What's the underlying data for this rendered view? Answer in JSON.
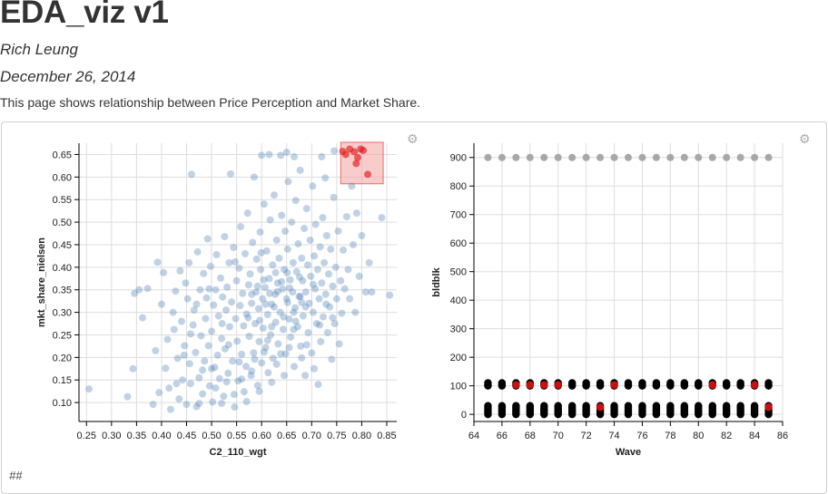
{
  "page": {
    "title": "EDA_viz v1",
    "author": "Rich Leung",
    "date": "December 26, 2014",
    "description": "This page shows relationship between Price Perception and Market Share.",
    "footer_text": "##"
  },
  "icons": {
    "settings": "gear-icon"
  },
  "colors": {
    "point": "#4a7fb5",
    "selected": "#e31a1c",
    "brush": "#f4a3a3",
    "gray_point": "#a8a8a8",
    "black_point": "#000000",
    "red_point": "#cc1010"
  },
  "chart_data": [
    {
      "type": "scatter",
      "title": "",
      "xlabel": "C2_110_wgt",
      "ylabel": "mkt_share_nielsen",
      "xlim": [
        0.235,
        0.87
      ],
      "ylim": [
        0.058,
        0.675
      ],
      "xticks": [
        "0.25",
        "0.30",
        "0.35",
        "0.40",
        "0.45",
        "0.50",
        "0.55",
        "0.60",
        "0.65",
        "0.70",
        "0.75",
        "0.80",
        "0.85"
      ],
      "xtick_values": [
        0.25,
        0.3,
        0.35,
        0.4,
        0.45,
        0.5,
        0.55,
        0.6,
        0.65,
        0.7,
        0.75,
        0.8,
        0.85
      ],
      "yticks": [
        "0.10",
        "0.15",
        "0.20",
        "0.25",
        "0.30",
        "0.35",
        "0.40",
        "0.45",
        "0.50",
        "0.55",
        "0.60",
        "0.65"
      ],
      "ytick_values": [
        0.1,
        0.15,
        0.2,
        0.25,
        0.3,
        0.35,
        0.4,
        0.45,
        0.5,
        0.55,
        0.6,
        0.65
      ],
      "grid": true,
      "brush": {
        "x": [
          0.758,
          0.843
        ],
        "y": [
          0.585,
          0.677
        ]
      },
      "selected_points": [
        [
          0.762,
          0.657
        ],
        [
          0.768,
          0.65
        ],
        [
          0.785,
          0.656
        ],
        [
          0.792,
          0.643
        ],
        [
          0.798,
          0.662
        ],
        [
          0.803,
          0.659
        ],
        [
          0.812,
          0.606
        ],
        [
          0.789,
          0.63
        ],
        [
          0.776,
          0.662
        ]
      ],
      "background_points": [
        [
          0.255,
          0.13
        ],
        [
          0.332,
          0.113
        ],
        [
          0.343,
          0.175
        ],
        [
          0.346,
          0.342
        ],
        [
          0.355,
          0.35
        ],
        [
          0.362,
          0.288
        ],
        [
          0.372,
          0.353
        ],
        [
          0.383,
          0.096
        ],
        [
          0.388,
          0.215
        ],
        [
          0.392,
          0.411
        ],
        [
          0.395,
          0.122
        ],
        [
          0.4,
          0.318
        ],
        [
          0.404,
          0.388
        ],
        [
          0.408,
          0.176
        ],
        [
          0.412,
          0.24
        ],
        [
          0.415,
          0.132
        ],
        [
          0.418,
          0.085
        ],
        [
          0.423,
          0.3
        ],
        [
          0.425,
          0.262
        ],
        [
          0.428,
          0.347
        ],
        [
          0.432,
          0.198
        ],
        [
          0.435,
          0.108
        ],
        [
          0.437,
          0.392
        ],
        [
          0.44,
          0.28
        ],
        [
          0.442,
          0.15
        ],
        [
          0.446,
          0.226
        ],
        [
          0.448,
          0.365
        ],
        [
          0.45,
          0.096
        ],
        [
          0.452,
          0.33
        ],
        [
          0.455,
          0.41
        ],
        [
          0.456,
          0.186
        ],
        [
          0.458,
          0.142
        ],
        [
          0.46,
          0.606
        ],
        [
          0.463,
          0.272
        ],
        [
          0.465,
          0.305
        ],
        [
          0.468,
          0.211
        ],
        [
          0.47,
          0.091
        ],
        [
          0.472,
          0.434
        ],
        [
          0.475,
          0.155
        ],
        [
          0.477,
          0.35
        ],
        [
          0.479,
          0.248
        ],
        [
          0.482,
          0.119
        ],
        [
          0.484,
          0.386
        ],
        [
          0.486,
          0.192
        ],
        [
          0.488,
          0.286
        ],
        [
          0.49,
          0.332
        ],
        [
          0.492,
          0.463
        ],
        [
          0.494,
          0.226
        ],
        [
          0.496,
          0.137
        ],
        [
          0.498,
          0.402
        ],
        [
          0.5,
          0.258
        ],
        [
          0.502,
          0.101
        ],
        [
          0.504,
          0.316
        ],
        [
          0.506,
          0.178
        ],
        [
          0.508,
          0.35
        ],
        [
          0.51,
          0.428
        ],
        [
          0.512,
          0.205
        ],
        [
          0.514,
          0.292
        ],
        [
          0.516,
          0.153
        ],
        [
          0.518,
          0.376
        ],
        [
          0.52,
          0.242
        ],
        [
          0.522,
          0.334
        ],
        [
          0.524,
          0.114
        ],
        [
          0.526,
          0.468
        ],
        [
          0.527,
          0.219
        ],
        [
          0.529,
          0.305
        ],
        [
          0.531,
          0.356
        ],
        [
          0.533,
          0.165
        ],
        [
          0.535,
          0.41
        ],
        [
          0.536,
          0.268
        ],
        [
          0.538,
          0.607
        ],
        [
          0.54,
          0.323
        ],
        [
          0.542,
          0.192
        ],
        [
          0.544,
          0.444
        ],
        [
          0.546,
          0.09
        ],
        [
          0.548,
          0.286
        ],
        [
          0.55,
          0.37
        ],
        [
          0.551,
          0.236
        ],
        [
          0.553,
          0.148
        ],
        [
          0.555,
          0.398
        ],
        [
          0.557,
          0.315
        ],
        [
          0.558,
          0.49
        ],
        [
          0.56,
          0.207
        ],
        [
          0.562,
          0.342
        ],
        [
          0.564,
          0.27
        ],
        [
          0.565,
          0.124
        ],
        [
          0.567,
          0.43
        ],
        [
          0.569,
          0.18
        ],
        [
          0.57,
          0.296
        ],
        [
          0.572,
          0.52
        ],
        [
          0.574,
          0.361
        ],
        [
          0.575,
          0.247
        ],
        [
          0.577,
          0.385
        ],
        [
          0.579,
          0.16
        ],
        [
          0.58,
          0.32
        ],
        [
          0.582,
          0.455
        ],
        [
          0.584,
          0.21
        ],
        [
          0.585,
          0.6
        ],
        [
          0.587,
          0.275
        ],
        [
          0.589,
          0.345
        ],
        [
          0.59,
          0.418
        ],
        [
          0.592,
          0.138
        ],
        [
          0.594,
          0.308
        ],
        [
          0.595,
          0.235
        ],
        [
          0.597,
          0.478
        ],
        [
          0.598,
          0.395
        ],
        [
          0.6,
          0.188
        ],
        [
          0.602,
          0.33
        ],
        [
          0.603,
          0.265
        ],
        [
          0.605,
          0.54
        ],
        [
          0.607,
          0.355
        ],
        [
          0.608,
          0.222
        ],
        [
          0.61,
          0.436
        ],
        [
          0.612,
          0.295
        ],
        [
          0.613,
          0.166
        ],
        [
          0.615,
          0.375
        ],
        [
          0.617,
          0.505
        ],
        [
          0.618,
          0.25
        ],
        [
          0.62,
          0.318
        ],
        [
          0.622,
          0.405
        ],
        [
          0.623,
          0.198
        ],
        [
          0.625,
          0.56
        ],
        [
          0.627,
          0.34
        ],
        [
          0.628,
          0.278
        ],
        [
          0.63,
          0.46
        ],
        [
          0.632,
          0.365
        ],
        [
          0.633,
          0.23
        ],
        [
          0.635,
          0.42
        ],
        [
          0.637,
          0.3
        ],
        [
          0.638,
          0.648
        ],
        [
          0.64,
          0.515
        ],
        [
          0.642,
          0.352
        ],
        [
          0.643,
          0.262
        ],
        [
          0.645,
          0.395
        ],
        [
          0.647,
          0.48
        ],
        [
          0.648,
          0.208
        ],
        [
          0.65,
          0.33
        ],
        [
          0.652,
          0.44
        ],
        [
          0.653,
          0.59
        ],
        [
          0.655,
          0.285
        ],
        [
          0.657,
          0.372
        ],
        [
          0.658,
          0.245
        ],
        [
          0.66,
          0.5
        ],
        [
          0.662,
          0.345
        ],
        [
          0.663,
          0.41
        ],
        [
          0.665,
          0.18
        ],
        [
          0.667,
          0.31
        ],
        [
          0.668,
          0.548
        ],
        [
          0.67,
          0.39
        ],
        [
          0.672,
          0.268
        ],
        [
          0.673,
          0.452
        ],
        [
          0.675,
          0.335
        ],
        [
          0.677,
          0.615
        ],
        [
          0.678,
          0.225
        ],
        [
          0.68,
          0.42
        ],
        [
          0.682,
          0.37
        ],
        [
          0.683,
          0.292
        ],
        [
          0.685,
          0.486
        ],
        [
          0.687,
          0.16
        ],
        [
          0.688,
          0.345
        ],
        [
          0.69,
          0.53
        ],
        [
          0.692,
          0.405
        ],
        [
          0.693,
          0.255
        ],
        [
          0.695,
          0.32
        ],
        [
          0.697,
          0.46
        ],
        [
          0.698,
          0.38
        ],
        [
          0.7,
          0.21
        ],
        [
          0.702,
          0.58
        ],
        [
          0.703,
          0.3
        ],
        [
          0.705,
          0.425
        ],
        [
          0.707,
          0.352
        ],
        [
          0.708,
          0.495
        ],
        [
          0.71,
          0.275
        ],
        [
          0.712,
          0.395
        ],
        [
          0.713,
          0.14
        ],
        [
          0.715,
          0.33
        ],
        [
          0.717,
          0.445
        ],
        [
          0.718,
          0.235
        ],
        [
          0.72,
          0.365
        ],
        [
          0.722,
          0.51
        ],
        [
          0.723,
          0.29
        ],
        [
          0.725,
          0.41
        ],
        [
          0.727,
          0.598
        ],
        [
          0.728,
          0.34
        ],
        [
          0.73,
          0.47
        ],
        [
          0.732,
          0.255
        ],
        [
          0.734,
          0.385
        ],
        [
          0.736,
          0.312
        ],
        [
          0.738,
          0.44
        ],
        [
          0.74,
          0.196
        ],
        [
          0.742,
          0.358
        ],
        [
          0.744,
          0.555
        ],
        [
          0.746,
          0.275
        ],
        [
          0.748,
          0.4
        ],
        [
          0.75,
          0.33
        ],
        [
          0.753,
          0.48
        ],
        [
          0.755,
          0.23
        ],
        [
          0.758,
          0.37
        ],
        [
          0.76,
          0.298
        ],
        [
          0.763,
          0.438
        ],
        [
          0.766,
          0.352
        ],
        [
          0.77,
          0.512
        ],
        [
          0.773,
          0.395
        ],
        [
          0.776,
          0.33
        ],
        [
          0.78,
          0.58
        ],
        [
          0.783,
          0.45
        ],
        [
          0.787,
          0.3
        ],
        [
          0.79,
          0.52
        ],
        [
          0.795,
          0.38
        ],
        [
          0.8,
          0.47
        ],
        [
          0.808,
          0.345
        ],
        [
          0.815,
          0.41
        ],
        [
          0.82,
          0.345
        ],
        [
          0.84,
          0.51
        ],
        [
          0.856,
          0.338
        ],
        [
          0.445,
          0.205
        ],
        [
          0.458,
          0.252
        ],
        [
          0.47,
          0.318
        ],
        [
          0.482,
          0.172
        ],
        [
          0.495,
          0.352
        ],
        [
          0.508,
          0.132
        ],
        [
          0.521,
          0.275
        ],
        [
          0.534,
          0.228
        ],
        [
          0.547,
          0.412
        ],
        [
          0.56,
          0.152
        ],
        [
          0.573,
          0.288
        ],
        [
          0.586,
          0.196
        ],
        [
          0.599,
          0.432
        ],
        [
          0.612,
          0.238
        ],
        [
          0.625,
          0.312
        ],
        [
          0.638,
          0.208
        ],
        [
          0.651,
          0.388
        ],
        [
          0.664,
          0.262
        ],
        [
          0.677,
          0.335
        ],
        [
          0.69,
          0.228
        ],
        [
          0.703,
          0.362
        ],
        [
          0.716,
          0.272
        ],
        [
          0.729,
          0.318
        ],
        [
          0.742,
          0.288
        ],
        [
          0.52,
          0.098
        ],
        [
          0.545,
          0.118
        ],
        [
          0.57,
          0.102
        ],
        [
          0.595,
          0.125
        ],
        [
          0.62,
          0.145
        ],
        [
          0.645,
          0.16
        ],
        [
          0.43,
          0.142
        ],
        [
          0.475,
          0.098
        ],
        [
          0.5,
          0.175
        ],
        [
          0.53,
          0.146
        ],
        [
          0.555,
          0.19
        ],
        [
          0.58,
          0.17
        ],
        [
          0.605,
          0.212
        ],
        [
          0.63,
          0.185
        ],
        [
          0.655,
          0.222
        ],
        [
          0.68,
          0.199
        ],
        [
          0.705,
          0.175
        ],
        [
          0.6,
          0.648
        ],
        [
          0.615,
          0.65
        ],
        [
          0.65,
          0.655
        ],
        [
          0.665,
          0.645
        ],
        [
          0.72,
          0.645
        ],
        [
          0.745,
          0.658
        ],
        [
          0.58,
          0.34
        ],
        [
          0.592,
          0.358
        ],
        [
          0.604,
          0.372
        ],
        [
          0.616,
          0.342
        ],
        [
          0.628,
          0.388
        ],
        [
          0.64,
          0.368
        ],
        [
          0.652,
          0.322
        ],
        [
          0.664,
          0.3
        ],
        [
          0.676,
          0.378
        ],
        [
          0.688,
          0.312
        ],
        [
          0.596,
          0.282
        ],
        [
          0.608,
          0.318
        ],
        [
          0.62,
          0.268
        ],
        [
          0.632,
          0.346
        ],
        [
          0.644,
          0.29
        ],
        [
          0.656,
          0.354
        ],
        [
          0.668,
          0.28
        ],
        [
          0.68,
          0.322
        ]
      ]
    },
    {
      "type": "scatter",
      "title": "",
      "xlabel": "Wave",
      "ylabel": "bldblk",
      "xlim": [
        64,
        86
      ],
      "ylim": [
        -25,
        950
      ],
      "xticks": [
        "64",
        "66",
        "68",
        "70",
        "72",
        "74",
        "76",
        "78",
        "80",
        "82",
        "84",
        "86"
      ],
      "xtick_values": [
        64,
        66,
        68,
        70,
        72,
        74,
        76,
        78,
        80,
        82,
        84,
        86
      ],
      "yticks": [
        "0",
        "100",
        "200",
        "300",
        "400",
        "500",
        "600",
        "700",
        "800",
        "900"
      ],
      "ytick_values": [
        0,
        100,
        200,
        300,
        400,
        500,
        600,
        700,
        800,
        900
      ],
      "grid": true,
      "waves": [
        65,
        66,
        67,
        68,
        69,
        70,
        71,
        72,
        73,
        74,
        75,
        76,
        77,
        78,
        79,
        80,
        81,
        82,
        83,
        84,
        85
      ],
      "gray_series_value": 900,
      "black_series_values": [
        0,
        5,
        10,
        15,
        20,
        25,
        30,
        100,
        105,
        110
      ],
      "red_points": [
        [
          67,
          103
        ],
        [
          68,
          103
        ],
        [
          69,
          103
        ],
        [
          70,
          103
        ],
        [
          73,
          25
        ],
        [
          74,
          103
        ],
        [
          81,
          103
        ],
        [
          84,
          103
        ],
        [
          85,
          25
        ]
      ]
    }
  ]
}
